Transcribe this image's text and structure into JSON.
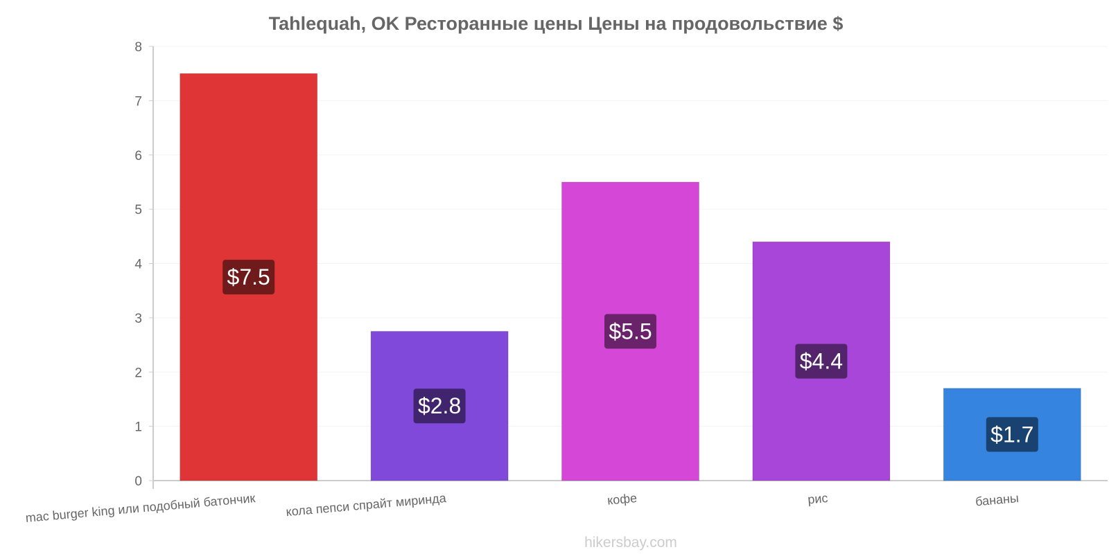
{
  "chart_data": {
    "type": "bar",
    "title": "Tahlequah, OK Ресторанные цены Цены на продовольствие $",
    "categories": [
      "mac burger king или подобный батончик",
      "кола пепси спрайт миринда",
      "кофе",
      "рис",
      "бананы"
    ],
    "values": [
      7.5,
      2.75,
      5.5,
      4.4,
      1.7
    ],
    "value_labels": [
      "$7.5",
      "$2.8",
      "$5.5",
      "$4.4",
      "$1.7"
    ],
    "bar_colors": [
      "#e03536",
      "#8049da",
      "#d547d6",
      "#a746d9",
      "#3584e0"
    ],
    "label_bg_colors": [
      "#6f1a1b",
      "#40246d",
      "#6a236b",
      "#53236c",
      "#1a4270"
    ],
    "ylim": [
      0,
      8
    ],
    "yticks": [
      "0",
      "1",
      "2",
      "3",
      "4",
      "5",
      "6",
      "7",
      "8"
    ],
    "grid": true,
    "legend": "none"
  },
  "watermark": "hikersbay.com"
}
